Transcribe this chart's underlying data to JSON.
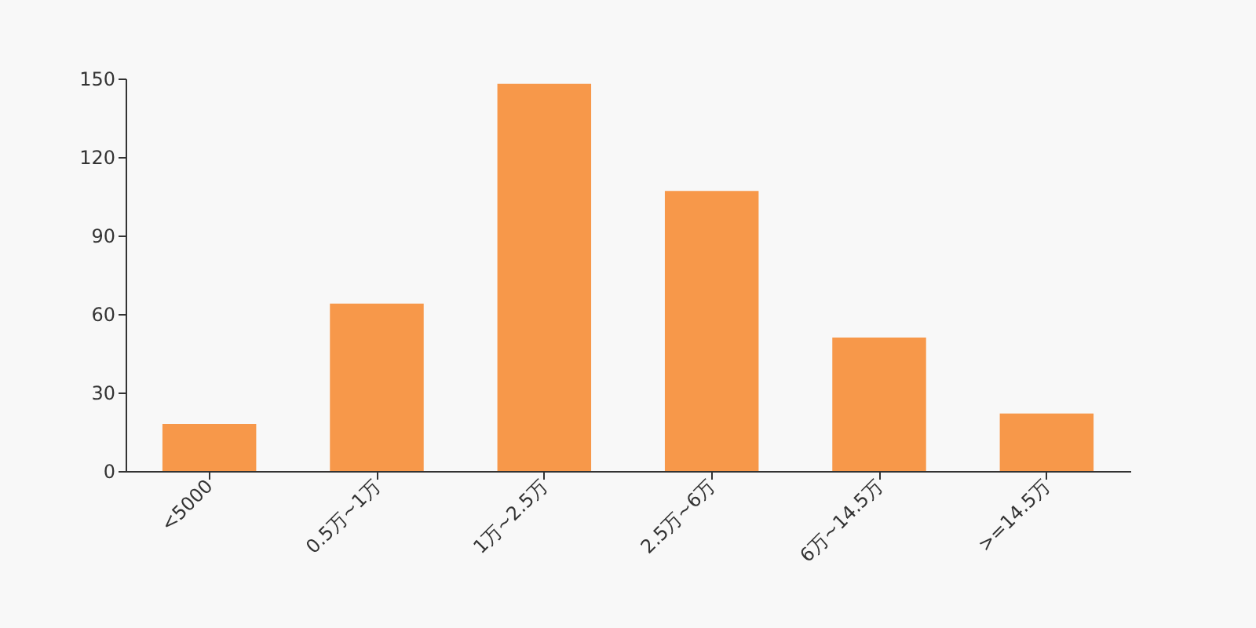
{
  "chart_data": {
    "type": "bar",
    "categories": [
      "<5000",
      "0.5万~1万",
      "1万~2.5万",
      "2.5万~6万",
      "6万~14.5万",
      ">=14.5万"
    ],
    "values": [
      18,
      64,
      148,
      107,
      51,
      22
    ],
    "color": "#f7984a",
    "ylim": [
      0,
      150
    ],
    "yticks": [
      0,
      30,
      60,
      90,
      120,
      150
    ],
    "grid": false
  }
}
